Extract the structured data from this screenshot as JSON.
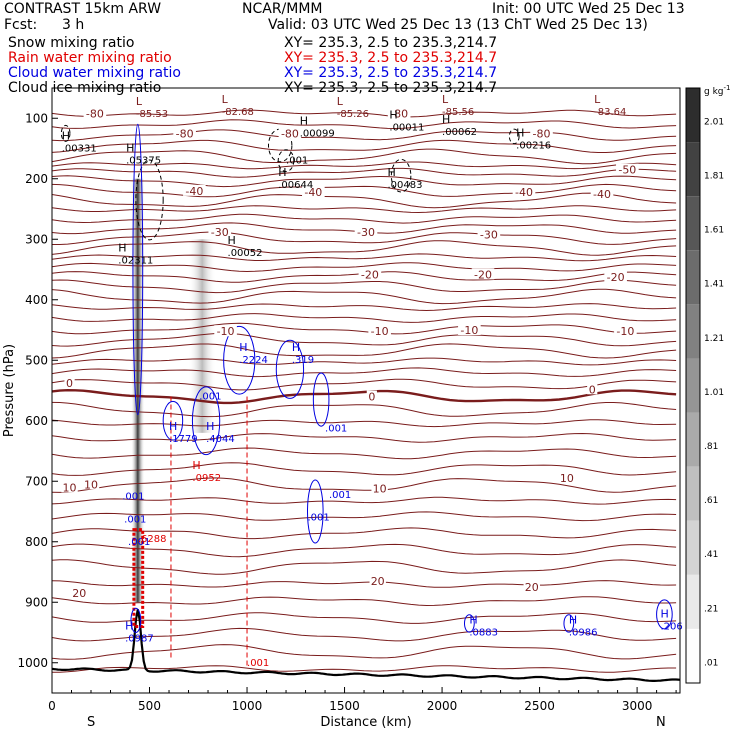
{
  "header": {
    "model": "CONTRAST 15km ARW",
    "org": "NCAR/MMM",
    "init": "Init: 00 UTC Wed 25 Dec 13",
    "fcst_label": "Fcst:",
    "fcst_value": "3 h",
    "valid": "Valid: 03 UTC Wed 25 Dec 13 (13 ChT Wed 25 Dec 13)",
    "rows": [
      {
        "field": "Snow mixing ratio",
        "xy": "XY= 235.3,  2.5 to 235.3,214.7",
        "color": "#000000"
      },
      {
        "field": "Rain water mixing ratio",
        "xy": "XY= 235.3,  2.5 to 235.3,214.7",
        "color": "#e00000"
      },
      {
        "field": "Cloud water mixing ratio",
        "xy": "XY= 235.3,  2.5 to 235.3,214.7",
        "color": "#0000e0"
      },
      {
        "field": "Cloud ice mixing ratio",
        "xy": "XY= 235.3,  2.5 to 235.3,214.7",
        "color": "#000000"
      }
    ]
  },
  "chart_data": {
    "type": "cross-section",
    "xlabel": "Distance (km)",
    "ylabel": "Pressure (hPa)",
    "xlim": [
      0,
      3220
    ],
    "ylim": [
      1050,
      50
    ],
    "x_ticks": [
      "0",
      "500",
      "1000",
      "1500",
      "2000",
      "2500",
      "3000"
    ],
    "x_tick_values": [
      0,
      500,
      1000,
      1500,
      2000,
      2500,
      3000
    ],
    "y_ticks": [
      "100",
      "200",
      "300",
      "400",
      "500",
      "600",
      "700",
      "800",
      "900",
      "1000"
    ],
    "y_tick_values": [
      100,
      200,
      300,
      400,
      500,
      600,
      700,
      800,
      900,
      1000
    ],
    "endpoints": {
      "left": "S",
      "right": "N"
    },
    "colorbar": {
      "unit": "g kg",
      "unit_exp": "-1",
      "labels": [
        "2.01",
        "1.81",
        "1.61",
        "1.41",
        "1.21",
        "1.01",
        ".81",
        ".61",
        ".41",
        ".21",
        ".01"
      ],
      "values": [
        2.01,
        1.81,
        1.61,
        1.41,
        1.21,
        1.01,
        0.81,
        0.61,
        0.41,
        0.21,
        0.01
      ]
    },
    "temperature_labels": [
      {
        "text": "-80",
        "x": 220,
        "p": 92
      },
      {
        "text": "-80",
        "x": 680,
        "p": 125
      },
      {
        "text": "-80",
        "x": 1220,
        "p": 125
      },
      {
        "text": "-80",
        "x": 1780,
        "p": 92
      },
      {
        "text": "-80",
        "x": 2510,
        "p": 125
      },
      {
        "text": "-50",
        "x": 2950,
        "p": 185
      },
      {
        "text": "-40",
        "x": 730,
        "p": 220
      },
      {
        "text": "-40",
        "x": 1340,
        "p": 222
      },
      {
        "text": "-40",
        "x": 2420,
        "p": 222
      },
      {
        "text": "-40",
        "x": 2820,
        "p": 225
      },
      {
        "text": "-30",
        "x": 860,
        "p": 288
      },
      {
        "text": "-30",
        "x": 1610,
        "p": 288
      },
      {
        "text": "-30",
        "x": 2240,
        "p": 292
      },
      {
        "text": "-20",
        "x": 1630,
        "p": 358
      },
      {
        "text": "-20",
        "x": 2210,
        "p": 358
      },
      {
        "text": "-20",
        "x": 2890,
        "p": 362
      },
      {
        "text": "-10",
        "x": 890,
        "p": 452
      },
      {
        "text": "-10",
        "x": 1680,
        "p": 452
      },
      {
        "text": "-10",
        "x": 2140,
        "p": 450
      },
      {
        "text": "-10",
        "x": 2940,
        "p": 452
      },
      {
        "text": "0",
        "x": 90,
        "p": 538
      },
      {
        "text": "0",
        "x": 1640,
        "p": 560
      },
      {
        "text": "0",
        "x": 2770,
        "p": 548
      },
      {
        "text": "10",
        "x": 90,
        "p": 710
      },
      {
        "text": "10",
        "x": 200,
        "p": 705
      },
      {
        "text": "10",
        "x": 1680,
        "p": 712
      },
      {
        "text": "10",
        "x": 2640,
        "p": 695
      },
      {
        "text": "20",
        "x": 140,
        "p": 885
      },
      {
        "text": "20",
        "x": 1670,
        "p": 865
      },
      {
        "text": "20",
        "x": 2460,
        "p": 875
      }
    ],
    "snow_extrema": [
      {
        "letter": "L",
        "value": "-85.53",
        "x": 430,
        "p": 88
      },
      {
        "letter": "L",
        "value": "-82.68",
        "x": 870,
        "p": 85
      },
      {
        "letter": "L",
        "value": "-85.26",
        "x": 1460,
        "p": 88
      },
      {
        "letter": "L",
        "value": "-85.56",
        "x": 2000,
        "p": 85
      },
      {
        "letter": "L",
        "value": "-83.64",
        "x": 2780,
        "p": 85
      }
    ],
    "ice_extrema": [
      {
        "letter": "H",
        "value": ".00331",
        "x": 50,
        "p": 145
      },
      {
        "letter": "H",
        "value": ".05375",
        "x": 380,
        "p": 165
      },
      {
        "letter": "H",
        "value": ".00099",
        "x": 1270,
        "p": 120
      },
      {
        "letter": "H",
        "value": ".00011",
        "x": 1730,
        "p": 110
      },
      {
        "letter": "H",
        "value": ".00062",
        "x": 2000,
        "p": 118
      },
      {
        "letter": "H",
        "value": ".00216",
        "x": 2380,
        "p": 140
      },
      {
        "letter": "H",
        "value": ".00644",
        "x": 1160,
        "p": 205
      },
      {
        "letter": "H",
        "value": ".00483",
        "x": 1720,
        "p": 205
      },
      {
        "letter": "H",
        "value": ".00052",
        "x": 900,
        "p": 318
      },
      {
        "letter": "H",
        "value": ".02311",
        "x": 340,
        "p": 330
      }
    ],
    "cloud_water_extrema": [
      {
        "letter": "H",
        "value": ".2224",
        "x": 960,
        "p": 495
      },
      {
        "letter": "H",
        "value": ".319",
        "x": 1230,
        "p": 495
      },
      {
        "letter": "H",
        "value": ".1779",
        "x": 600,
        "p": 625
      },
      {
        "letter": "H",
        "value": ".4044",
        "x": 790,
        "p": 625
      },
      {
        "letter": "H",
        "value": ".0883",
        "x": 2140,
        "p": 945
      },
      {
        "letter": "H",
        "value": ".0986",
        "x": 2650,
        "p": 945
      },
      {
        "letter": "H",
        "value": ".0987",
        "x": 375,
        "p": 955
      },
      {
        "letter": "H",
        "value": ".206",
        "x": 3120,
        "p": 935
      }
    ],
    "cloud_water_labels": [
      {
        "text": ".001",
        "x": 755,
        "p": 565
      },
      {
        "text": ".001",
        "x": 1400,
        "p": 618
      },
      {
        "text": ".001",
        "x": 1420,
        "p": 728
      },
      {
        "text": ".001",
        "x": 1310,
        "p": 765
      },
      {
        "text": ".001",
        "x": 360,
        "p": 730
      },
      {
        "text": ".001",
        "x": 370,
        "p": 768
      },
      {
        "text": ".001",
        "x": 390,
        "p": 805
      }
    ],
    "rain_extrema": [
      {
        "letter": "H",
        "value": ".0952",
        "x": 720,
        "p": 690
      }
    ],
    "rain_labels": [
      {
        "text": ".6288",
        "x": 440,
        "p": 800
      },
      {
        "text": ".001",
        "x": 1000,
        "p": 1005
      }
    ],
    "ice_labels": [
      {
        "text": ".001",
        "x": 1200,
        "p": 175
      }
    ]
  }
}
